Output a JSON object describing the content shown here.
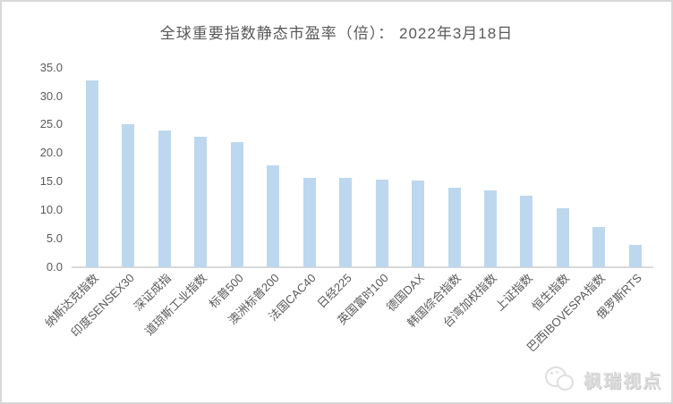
{
  "chart_data": {
    "type": "bar",
    "title": "全球重要指数静态市盈率（倍）： 2022年3月18日",
    "categories": [
      "纳斯达克指数",
      "印度SENSEX30",
      "深证成指",
      "道琼斯工业指数",
      "标普500",
      "澳洲标普200",
      "法国CAC40",
      "日经225",
      "英国富时100",
      "德国DAX",
      "韩国综合指数",
      "台湾加权指数",
      "上证指数",
      "恒生指数",
      "巴西IBOVESPA指数",
      "俄罗斯RTS"
    ],
    "values": [
      32.7,
      25.1,
      24.0,
      22.8,
      22.0,
      17.8,
      15.7,
      15.6,
      15.3,
      15.2,
      14.0,
      13.5,
      12.6,
      10.3,
      7.0,
      3.9
    ],
    "xlabel": "",
    "ylabel": "",
    "ylim": [
      0,
      35
    ],
    "ytick_labels": [
      "0.0",
      "5.0",
      "10.0",
      "15.0",
      "20.0",
      "25.0",
      "30.0",
      "35.0"
    ],
    "grid": "off",
    "legend": "none",
    "bar_color": "#BDD7EE",
    "axis_line_color": "#D9D9D9",
    "text_color": "#595959"
  },
  "watermark": {
    "text": "枫瑞视点",
    "icon": "chat-bubbles-logo",
    "color": "#DEDEDE"
  }
}
